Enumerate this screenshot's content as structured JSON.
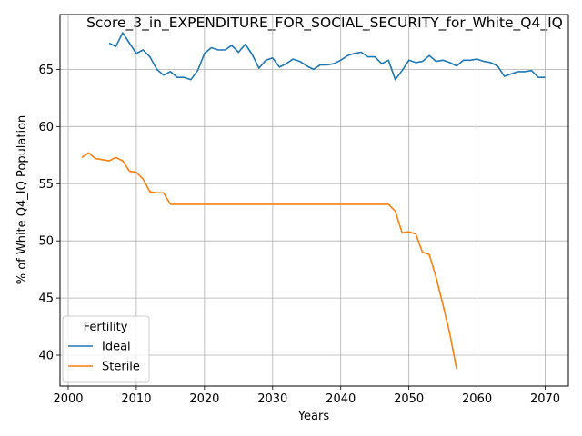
{
  "chart_data": {
    "type": "line",
    "title": "Score_3_in_EXPENDITURE_FOR_SOCIAL_SECURITY_for_White_Q4_IQ",
    "xlabel": "Years",
    "ylabel": "% of White Q4_IQ Population",
    "xlim": [
      1998.8,
      2073.4
    ],
    "ylim": [
      37.3,
      69.8
    ],
    "xticks": [
      2000,
      2010,
      2020,
      2030,
      2040,
      2050,
      2060,
      2070
    ],
    "yticks": [
      40,
      45,
      50,
      55,
      60,
      65
    ],
    "grid": true,
    "legend": {
      "title": "Fertility",
      "placement": "lower-left"
    },
    "series": [
      {
        "name": "Ideal",
        "color": "#1f77b4",
        "x": [
          2006,
          2007,
          2008,
          2009,
          2010,
          2011,
          2012,
          2013,
          2014,
          2015,
          2016,
          2017,
          2018,
          2019,
          2020,
          2021,
          2022,
          2023,
          2024,
          2025,
          2026,
          2027,
          2028,
          2029,
          2030,
          2031,
          2032,
          2033,
          2034,
          2035,
          2036,
          2037,
          2038,
          2039,
          2040,
          2041,
          2042,
          2043,
          2044,
          2045,
          2046,
          2047,
          2048,
          2049,
          2050,
          2051,
          2052,
          2053,
          2054,
          2055,
          2056,
          2057,
          2058,
          2059,
          2060,
          2061,
          2062,
          2063,
          2064,
          2065,
          2066,
          2067,
          2068,
          2069,
          2070
        ],
        "values": [
          67.3,
          67.0,
          68.2,
          67.3,
          66.4,
          66.7,
          66.1,
          65.0,
          64.5,
          64.8,
          64.3,
          64.3,
          64.1,
          64.9,
          66.4,
          66.9,
          66.7,
          66.7,
          67.1,
          66.5,
          67.2,
          66.3,
          65.1,
          65.8,
          66.0,
          65.2,
          65.5,
          65.9,
          65.7,
          65.3,
          65.0,
          65.4,
          65.4,
          65.5,
          65.8,
          66.2,
          66.4,
          66.5,
          66.1,
          66.1,
          65.5,
          65.8,
          64.1,
          64.9,
          65.8,
          65.6,
          65.7,
          66.2,
          65.7,
          65.8,
          65.6,
          65.3,
          65.8,
          65.8,
          65.9,
          65.7,
          65.6,
          65.3,
          64.4,
          64.6,
          64.8,
          64.8,
          64.9,
          64.3,
          64.3
        ]
      },
      {
        "name": "Sterile",
        "color": "#ff7f0e",
        "x": [
          2002,
          2003,
          2004,
          2005,
          2006,
          2007,
          2008,
          2009,
          2010,
          2011,
          2012,
          2013,
          2014,
          2015,
          2016,
          2017,
          2018,
          2019,
          2020,
          2021,
          2022,
          2023,
          2024,
          2025,
          2026,
          2027,
          2028,
          2029,
          2030,
          2031,
          2032,
          2033,
          2034,
          2035,
          2036,
          2037,
          2038,
          2039,
          2040,
          2041,
          2042,
          2043,
          2044,
          2045,
          2046,
          2047,
          2048,
          2049,
          2050,
          2051,
          2052,
          2053,
          2054,
          2055,
          2056,
          2057
        ],
        "values": [
          57.3,
          57.7,
          57.2,
          57.1,
          57.0,
          57.3,
          57.0,
          56.1,
          56.0,
          55.4,
          54.3,
          54.2,
          54.2,
          53.2,
          53.2,
          53.2,
          53.2,
          53.2,
          53.2,
          53.2,
          53.2,
          53.2,
          53.2,
          53.2,
          53.2,
          53.2,
          53.2,
          53.2,
          53.2,
          53.2,
          53.2,
          53.2,
          53.2,
          53.2,
          53.2,
          53.2,
          53.2,
          53.2,
          53.2,
          53.2,
          53.2,
          53.2,
          53.2,
          53.2,
          53.2,
          53.2,
          52.6,
          50.7,
          50.8,
          50.6,
          49.0,
          48.8,
          46.8,
          44.4,
          41.9,
          38.8
        ]
      }
    ]
  }
}
